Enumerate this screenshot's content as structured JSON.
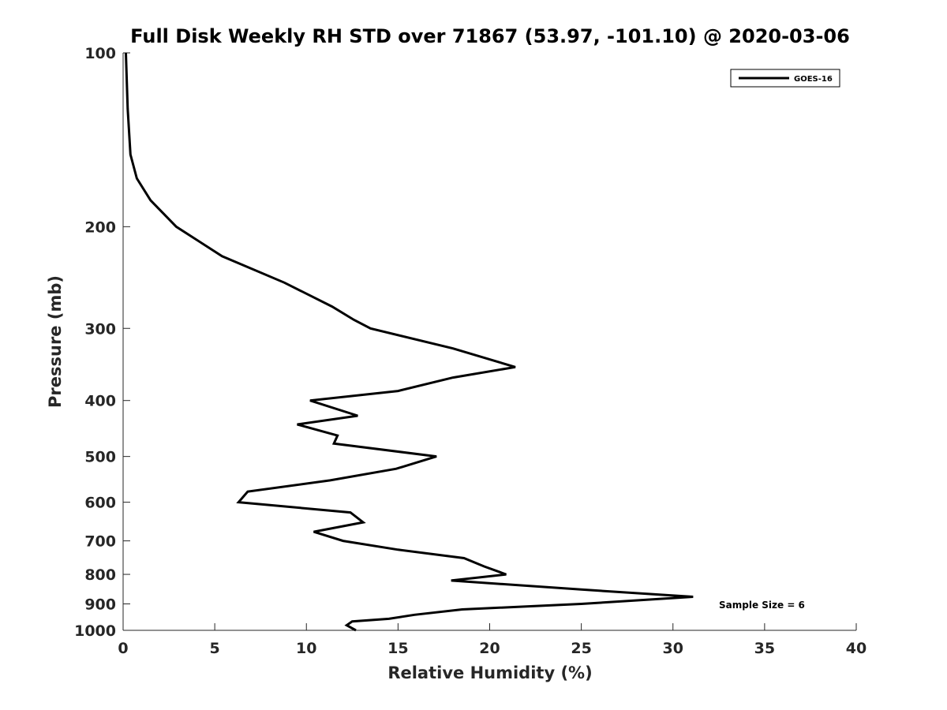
{
  "chart_data": {
    "type": "line",
    "title": "Full Disk Weekly RH STD over 71867 (53.97, -101.10) @ 2020-03-06",
    "xlabel": "Relative Humidity (%)",
    "ylabel": "Pressure (mb)",
    "xlim": [
      0,
      40
    ],
    "ylim": [
      100,
      1000
    ],
    "y_scale": "log",
    "y_reversed": true,
    "x_ticks": [
      0,
      5,
      10,
      15,
      20,
      25,
      30,
      35,
      40
    ],
    "y_ticks": [
      100,
      200,
      300,
      400,
      500,
      600,
      700,
      800,
      900,
      1000
    ],
    "grid": false,
    "legend_position": "top-right",
    "series": [
      {
        "name": "GOES-16",
        "color": "#000000",
        "x": [
          0.15,
          0.25,
          0.4,
          0.75,
          1.5,
          2.9,
          5.4,
          8.8,
          11.4,
          12.6,
          13.5,
          18.0,
          21.4,
          18.0,
          15.0,
          10.2,
          12.8,
          9.5,
          11.7,
          11.5,
          17.1,
          14.9,
          11.3,
          6.8,
          6.3,
          12.4,
          13.1,
          10.4,
          12.0,
          15.0,
          18.6,
          19.7,
          20.9,
          17.9,
          25.0,
          31.1,
          25.0,
          18.5,
          15.9,
          14.5,
          12.5,
          12.2,
          12.7
        ],
        "y": [
          100,
          125,
          150,
          165,
          180,
          200,
          225,
          250,
          275,
          290,
          300,
          325,
          350,
          365,
          385,
          400,
          425,
          440,
          460,
          475,
          500,
          525,
          550,
          575,
          600,
          625,
          650,
          675,
          700,
          725,
          750,
          775,
          800,
          820,
          850,
          875,
          900,
          920,
          940,
          955,
          965,
          980,
          1000
        ]
      }
    ],
    "annotations": [
      {
        "text": "Sample Size = 6"
      }
    ]
  }
}
